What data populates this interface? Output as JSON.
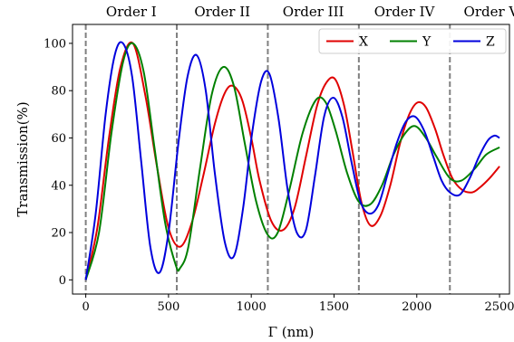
{
  "chart_data": {
    "type": "line",
    "title": "",
    "xlabel": "Γ (nm)",
    "ylabel": "Transmission(%)",
    "xlim": [
      -80,
      2560
    ],
    "ylim": [
      -6,
      108
    ],
    "xticks": [
      0,
      500,
      1000,
      1500,
      2000,
      2500
    ],
    "yticks": [
      0,
      20,
      40,
      60,
      80,
      100
    ],
    "grid": false,
    "legend": {
      "placement": "top-right",
      "columns": 3
    },
    "order_boundaries": [
      0,
      550,
      1100,
      1650,
      2200
    ],
    "order_labels": [
      {
        "text": "Order I",
        "x": 275
      },
      {
        "text": "Order II",
        "x": 825
      },
      {
        "text": "Order III",
        "x": 1375
      },
      {
        "text": "Order IV",
        "x": 1925
      },
      {
        "text": "Order V",
        "x": 2450
      }
    ],
    "series": [
      {
        "name": "X",
        "color": "#e00000",
        "x": [
          0,
          70,
          140,
          210,
          285,
          360,
          430,
          500,
          570,
          640,
          710,
          780,
          840,
          890,
          945,
          1000,
          1050,
          1120,
          1190,
          1260,
          1330,
          1395,
          1450,
          1505,
          1560,
          1610,
          1665,
          1720,
          1780,
          1840,
          1900,
          1955,
          2005,
          2055,
          2110,
          2160,
          2215,
          2275,
          2335,
          2380,
          2440,
          2500
        ],
        "y": [
          0,
          22,
          60,
          90,
          100,
          78,
          48,
          22,
          14,
          24,
          44,
          66,
          79,
          82,
          76,
          60,
          42,
          25,
          21,
          30,
          52,
          73,
          83,
          85,
          74,
          55,
          33,
          23,
          27,
          40,
          58,
          70,
          75,
          73,
          64,
          53,
          43,
          38,
          37,
          39,
          43,
          48
        ]
      },
      {
        "name": "Y",
        "color": "#008000",
        "x": [
          0,
          80,
          155,
          225,
          285,
          350,
          415,
          480,
          545,
          570,
          620,
          690,
          760,
          830,
          895,
          960,
          1030,
          1100,
          1160,
          1230,
          1310,
          1390,
          1450,
          1510,
          1580,
          1650,
          1720,
          1790,
          1860,
          1930,
          1990,
          2055,
          2120,
          2200,
          2270,
          2350,
          2420,
          2500
        ],
        "y": [
          0,
          20,
          62,
          92,
          100,
          88,
          56,
          24,
          6,
          5,
          14,
          47,
          78,
          90,
          82,
          58,
          33,
          19,
          20,
          38,
          62,
          76,
          75,
          63,
          45,
          33,
          32,
          40,
          53,
          62,
          65,
          60,
          52,
          43,
          42,
          47,
          53,
          56
        ]
      },
      {
        "name": "Z",
        "color": "#0000dd",
        "x": [
          0,
          60,
          120,
          175,
          225,
          280,
          335,
          390,
          445,
          500,
          560,
          615,
          670,
          725,
          780,
          840,
          895,
          950,
          1005,
          1060,
          1110,
          1165,
          1220,
          1275,
          1330,
          1385,
          1440,
          1495,
          1550,
          1605,
          1660,
          1715,
          1770,
          1825,
          1880,
          1935,
          1990,
          2045,
          2100,
          2150,
          2200,
          2260,
          2320,
          2375,
          2430,
          2470,
          2500
        ],
        "y": [
          0,
          28,
          70,
          95,
          100,
          86,
          50,
          14,
          3,
          20,
          58,
          86,
          95,
          80,
          45,
          16,
          10,
          30,
          62,
          84,
          87,
          68,
          38,
          20,
          21,
          44,
          69,
          77,
          69,
          50,
          33,
          28,
          32,
          45,
          58,
          67,
          69,
          63,
          52,
          42,
          37,
          36,
          43,
          52,
          59,
          61,
          60
        ]
      }
    ]
  }
}
